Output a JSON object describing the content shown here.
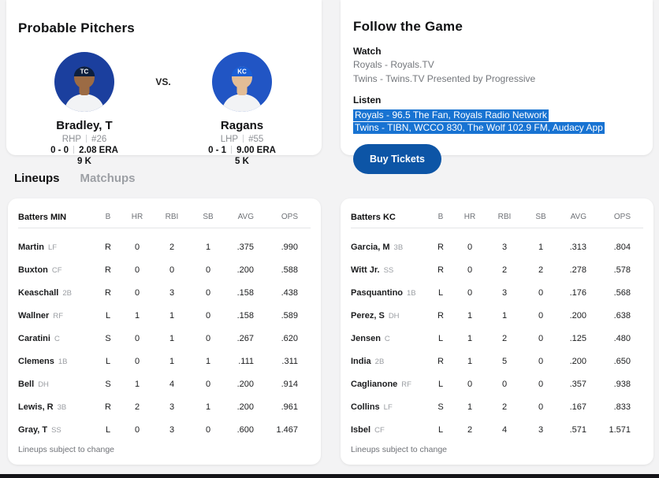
{
  "page": {
    "background": "#f3f3f4",
    "bottom_bar_color": "#141418"
  },
  "probable_pitchers": {
    "title": "Probable Pitchers",
    "vs_label": "VS.",
    "pitchers": [
      {
        "name": "Bradley, T",
        "hand": "RHP",
        "jersey_number": "#26",
        "record": "0 - 0",
        "era": "2.08 ERA",
        "strikeouts": "9 K",
        "cap_logo": "TC",
        "colors": {
          "bg": "#1b3f9e",
          "cap": "#0d1f3e",
          "skin": "#9c6b44"
        }
      },
      {
        "name": "Ragans",
        "hand": "LHP",
        "jersey_number": "#55",
        "record": "0 - 1",
        "era": "9.00 ERA",
        "strikeouts": "5 K",
        "cap_logo": "KC",
        "colors": {
          "bg": "#2155c4",
          "cap": "#1a5ed6",
          "skin": "#e3bd96"
        }
      }
    ]
  },
  "follow_the_game": {
    "title": "Follow the Game",
    "watch_label": "Watch",
    "watch_lines": [
      "Royals - Royals.TV",
      "Twins - Twins.TV Presented by Progressive"
    ],
    "listen_label": "Listen",
    "listen_lines": [
      "Royals - 96.5 The Fan, Royals Radio Network",
      "Twins - TIBN, WCCO 830, The Wolf 102.9 FM, Audacy App"
    ],
    "listen_highlight_color": "#1873d2",
    "buy_tickets_label": "Buy Tickets",
    "buy_tickets_color": "#0d55a6"
  },
  "tabs": [
    {
      "label": "Lineups",
      "active": true
    },
    {
      "label": "Matchups",
      "active": false
    }
  ],
  "lineups": {
    "stat_columns": [
      "B",
      "HR",
      "RBI",
      "SB",
      "AVG",
      "OPS"
    ],
    "footnote": "Lineups subject to change",
    "teams": [
      {
        "header": "Batters MIN",
        "players": [
          {
            "name": "Martin",
            "pos": "LF",
            "b": "R",
            "hr": "0",
            "rbi": "2",
            "sb": "1",
            "avg": ".375",
            "ops": ".990"
          },
          {
            "name": "Buxton",
            "pos": "CF",
            "b": "R",
            "hr": "0",
            "rbi": "0",
            "sb": "0",
            "avg": ".200",
            "ops": ".588"
          },
          {
            "name": "Keaschall",
            "pos": "2B",
            "b": "R",
            "hr": "0",
            "rbi": "3",
            "sb": "0",
            "avg": ".158",
            "ops": ".438"
          },
          {
            "name": "Wallner",
            "pos": "RF",
            "b": "L",
            "hr": "1",
            "rbi": "1",
            "sb": "0",
            "avg": ".158",
            "ops": ".589"
          },
          {
            "name": "Caratini",
            "pos": "C",
            "b": "S",
            "hr": "0",
            "rbi": "1",
            "sb": "0",
            "avg": ".267",
            "ops": ".620"
          },
          {
            "name": "Clemens",
            "pos": "1B",
            "b": "L",
            "hr": "0",
            "rbi": "1",
            "sb": "1",
            "avg": ".111",
            "ops": ".311"
          },
          {
            "name": "Bell",
            "pos": "DH",
            "b": "S",
            "hr": "1",
            "rbi": "4",
            "sb": "0",
            "avg": ".200",
            "ops": ".914"
          },
          {
            "name": "Lewis, R",
            "pos": "3B",
            "b": "R",
            "hr": "2",
            "rbi": "3",
            "sb": "1",
            "avg": ".200",
            "ops": ".961"
          },
          {
            "name": "Gray, T",
            "pos": "SS",
            "b": "L",
            "hr": "0",
            "rbi": "3",
            "sb": "0",
            "avg": ".600",
            "ops": "1.467"
          }
        ]
      },
      {
        "header": "Batters KC",
        "players": [
          {
            "name": "Garcia, M",
            "pos": "3B",
            "b": "R",
            "hr": "0",
            "rbi": "3",
            "sb": "1",
            "avg": ".313",
            "ops": ".804"
          },
          {
            "name": "Witt Jr.",
            "pos": "SS",
            "b": "R",
            "hr": "0",
            "rbi": "2",
            "sb": "2",
            "avg": ".278",
            "ops": ".578"
          },
          {
            "name": "Pasquantino",
            "pos": "1B",
            "b": "L",
            "hr": "0",
            "rbi": "3",
            "sb": "0",
            "avg": ".176",
            "ops": ".568"
          },
          {
            "name": "Perez, S",
            "pos": "DH",
            "b": "R",
            "hr": "1",
            "rbi": "1",
            "sb": "0",
            "avg": ".200",
            "ops": ".638"
          },
          {
            "name": "Jensen",
            "pos": "C",
            "b": "L",
            "hr": "1",
            "rbi": "2",
            "sb": "0",
            "avg": ".125",
            "ops": ".480"
          },
          {
            "name": "India",
            "pos": "2B",
            "b": "R",
            "hr": "1",
            "rbi": "5",
            "sb": "0",
            "avg": ".200",
            "ops": ".650"
          },
          {
            "name": "Caglianone",
            "pos": "RF",
            "b": "L",
            "hr": "0",
            "rbi": "0",
            "sb": "0",
            "avg": ".357",
            "ops": ".938"
          },
          {
            "name": "Collins",
            "pos": "LF",
            "b": "S",
            "hr": "1",
            "rbi": "2",
            "sb": "0",
            "avg": ".167",
            "ops": ".833"
          },
          {
            "name": "Isbel",
            "pos": "CF",
            "b": "L",
            "hr": "2",
            "rbi": "4",
            "sb": "3",
            "avg": ".571",
            "ops": "1.571"
          }
        ]
      }
    ]
  }
}
